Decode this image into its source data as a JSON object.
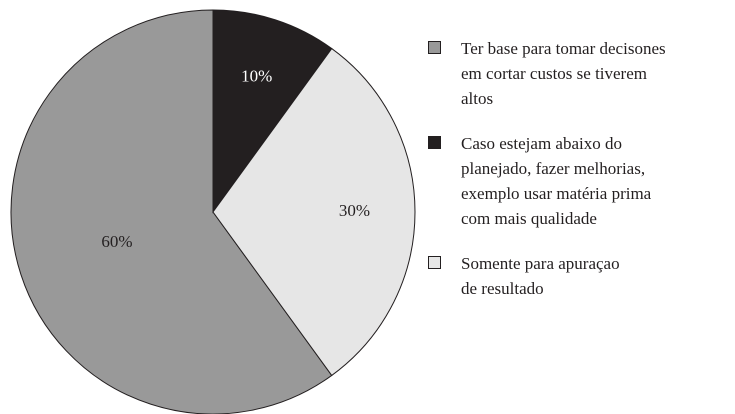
{
  "chart_data": {
    "type": "pie",
    "categories": [
      "Ter base para tomar decisones\nem cortar custos se tiverem\naltos",
      "Caso estejam abaixo do\nplanejado, fazer melhorias,\nexemplo usar matéria prima\ncom mais qualidade",
      "Somente para apuraçao\nde resultado"
    ],
    "values": [
      60,
      10,
      30
    ],
    "value_labels": [
      "60%",
      "10%",
      "30%"
    ],
    "colors": [
      "#999999",
      "#231f20",
      "#e6e6e6"
    ],
    "legend": "right"
  }
}
